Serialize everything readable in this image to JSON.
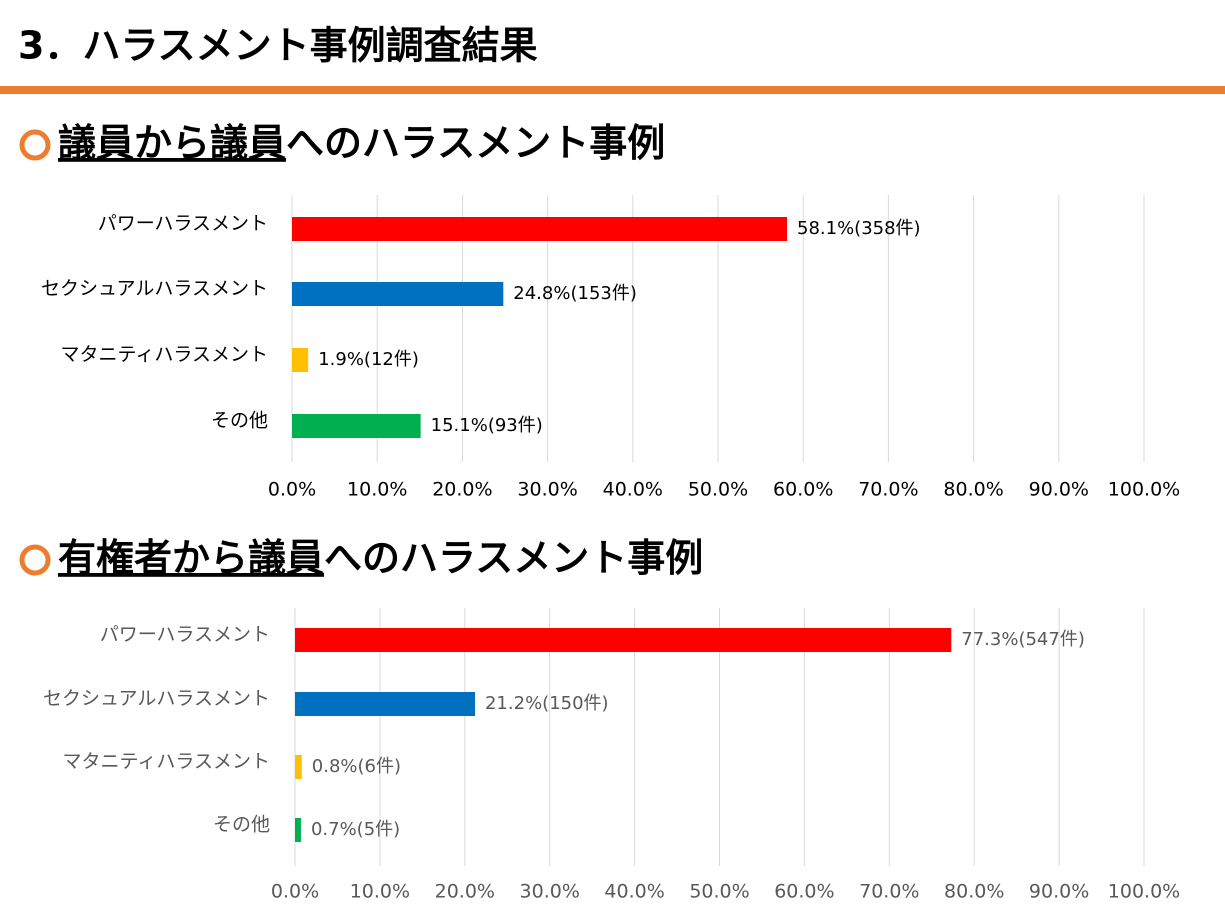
{
  "title": "3．ハラスメント事例調査結果",
  "chart_data": [
    {
      "type": "bar",
      "orientation": "horizontal",
      "title_underlined": "議員から議員",
      "title_rest": "へのハラスメント事例",
      "categories": [
        "パワーハラスメント",
        "セクシュアルハラスメント",
        "マタニティハラスメント",
        "その他"
      ],
      "values": [
        58.1,
        24.8,
        1.9,
        15.1
      ],
      "value_labels": [
        "58.1%(358件)",
        "24.8%(153件)",
        "1.9%(12件)",
        "15.1%(93件)"
      ],
      "colors": [
        "#ff0000",
        "#0070c0",
        "#ffc000",
        "#00b050"
      ],
      "xlim": [
        0,
        100
      ],
      "xticks": [
        {
          "value": 0,
          "label": "0.0%"
        },
        {
          "value": 10,
          "label": "10.0%"
        },
        {
          "value": 20,
          "label": "20.0%"
        },
        {
          "value": 30,
          "label": "30.0%"
        },
        {
          "value": 40,
          "label": "40.0%"
        },
        {
          "value": 50,
          "label": "50.0%"
        },
        {
          "value": 60,
          "label": "60.0%"
        },
        {
          "value": 70,
          "label": "70.0%"
        },
        {
          "value": 80,
          "label": "80.0%"
        },
        {
          "value": 90,
          "label": "90.0%"
        },
        {
          "value": 100,
          "label": "100.0%"
        }
      ],
      "grid": true
    },
    {
      "type": "bar",
      "orientation": "horizontal",
      "title_underlined": "有権者から議員",
      "title_rest": "へのハラスメント事例",
      "categories": [
        "パワーハラスメント",
        "セクシュアルハラスメント",
        "マタニティハラスメント",
        "その他"
      ],
      "values": [
        77.3,
        21.2,
        0.8,
        0.7
      ],
      "value_labels": [
        "77.3%(547件)",
        "21.2%(150件)",
        "0.8%(6件)",
        "0.7%(5件)"
      ],
      "colors": [
        "#ff0000",
        "#0070c0",
        "#ffc000",
        "#00b050"
      ],
      "xlim": [
        0,
        100
      ],
      "xticks": [
        {
          "value": 0,
          "label": "0.0%"
        },
        {
          "value": 10,
          "label": "10.0%"
        },
        {
          "value": 20,
          "label": "20.0%"
        },
        {
          "value": 30,
          "label": "30.0%"
        },
        {
          "value": 40,
          "label": "40.0%"
        },
        {
          "value": 50,
          "label": "50.0%"
        },
        {
          "value": 60,
          "label": "60.0%"
        },
        {
          "value": 70,
          "label": "70.0%"
        },
        {
          "value": 80,
          "label": "80.0%"
        },
        {
          "value": 90,
          "label": "90.0%"
        },
        {
          "value": 100,
          "label": "100.0%"
        }
      ],
      "grid": true
    }
  ]
}
